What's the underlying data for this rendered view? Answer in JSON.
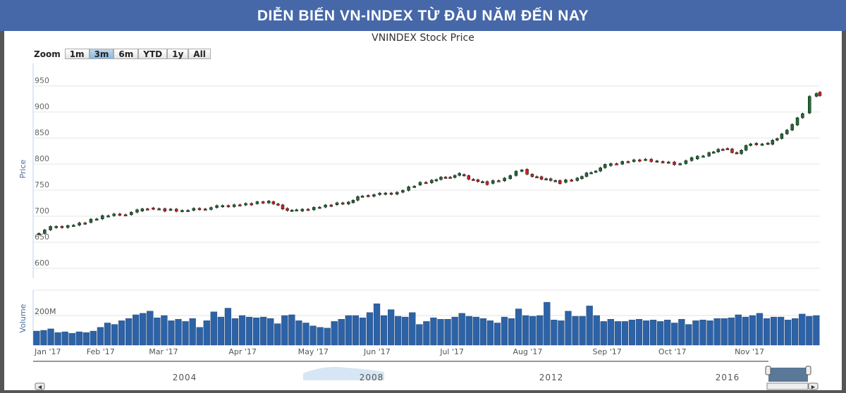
{
  "banner": {
    "title": "DIỄN BIẾN VN-INDEX TỪ ĐẦU NĂM ĐẾN NAY"
  },
  "chart_data": {
    "type": "candlestick",
    "title": "VNINDEX Stock Price",
    "ylabel": "Price",
    "ylim": [
      600,
      990
    ],
    "yticks": [
      "950",
      "900",
      "850",
      "800",
      "750",
      "700",
      "650",
      "600"
    ],
    "ytick_values": [
      950,
      900,
      850,
      800,
      750,
      700,
      650,
      600
    ],
    "x_unit": "trading day since Jan 2017",
    "months": [
      {
        "label": "Jan '17",
        "day": 0
      },
      {
        "label": "Feb '17",
        "day": 15
      },
      {
        "label": "Mar '17",
        "day": 33
      },
      {
        "label": "Apr '17",
        "day": 56
      },
      {
        "label": "May '17",
        "day": 76
      },
      {
        "label": "Jun '17",
        "day": 95
      },
      {
        "label": "Jul '17",
        "day": 117
      },
      {
        "label": "Aug '17",
        "day": 138
      },
      {
        "label": "Sep '17",
        "day": 161
      },
      {
        "label": "Oct '17",
        "day": 180
      },
      {
        "label": "Nov '17",
        "day": 202
      }
    ],
    "price": [
      [
        0,
        665
      ],
      [
        5,
        678
      ],
      [
        10,
        682
      ],
      [
        15,
        688
      ],
      [
        20,
        700
      ],
      [
        25,
        703
      ],
      [
        30,
        710
      ],
      [
        33,
        716
      ],
      [
        38,
        712
      ],
      [
        43,
        710
      ],
      [
        48,
        714
      ],
      [
        53,
        718
      ],
      [
        58,
        722
      ],
      [
        63,
        724
      ],
      [
        68,
        728
      ],
      [
        72,
        715
      ],
      [
        76,
        710
      ],
      [
        81,
        717
      ],
      [
        86,
        722
      ],
      [
        91,
        726
      ],
      [
        95,
        740
      ],
      [
        100,
        742
      ],
      [
        105,
        746
      ],
      [
        110,
        760
      ],
      [
        115,
        768
      ],
      [
        119,
        775
      ],
      [
        123,
        780
      ],
      [
        127,
        770
      ],
      [
        131,
        763
      ],
      [
        136,
        772
      ],
      [
        141,
        790
      ],
      [
        144,
        776
      ],
      [
        148,
        772
      ],
      [
        152,
        765
      ],
      [
        157,
        772
      ],
      [
        161,
        785
      ],
      [
        165,
        797
      ],
      [
        170,
        805
      ],
      [
        175,
        808
      ],
      [
        180,
        805
      ],
      [
        185,
        800
      ],
      [
        190,
        810
      ],
      [
        195,
        822
      ],
      [
        199,
        830
      ],
      [
        203,
        820
      ],
      [
        207,
        840
      ],
      [
        212,
        838
      ],
      [
        216,
        858
      ],
      [
        219,
        875
      ],
      [
        222,
        898
      ],
      [
        224,
        930
      ],
      [
        226,
        938
      ],
      [
        227,
        930
      ]
    ],
    "volume_label": "Volume",
    "volume_tick": "200M",
    "volume_tick_value": 200,
    "volume_unit": "M",
    "volume_ylim": [
      0,
      360
    ],
    "volume": [
      95,
      100,
      110,
      85,
      90,
      80,
      90,
      85,
      95,
      120,
      150,
      140,
      165,
      180,
      205,
      215,
      230,
      185,
      200,
      165,
      175,
      160,
      180,
      120,
      165,
      225,
      190,
      250,
      180,
      200,
      190,
      185,
      190,
      180,
      145,
      200,
      205,
      165,
      150,
      130,
      120,
      115,
      160,
      175,
      200,
      200,
      185,
      220,
      280,
      200,
      240,
      195,
      190,
      220,
      140,
      160,
      185,
      175,
      175,
      190,
      215,
      195,
      190,
      180,
      165,
      150,
      190,
      180,
      245,
      200,
      195,
      200,
      290,
      170,
      165,
      230,
      195,
      195,
      265,
      200,
      160,
      175,
      160,
      160,
      170,
      175,
      165,
      170,
      160,
      170,
      150,
      175,
      140,
      165,
      170,
      165,
      180,
      180,
      185,
      205,
      190,
      200,
      215,
      180,
      190,
      190,
      170,
      180,
      210,
      195,
      200
    ],
    "navigator": {
      "years": [
        "2004",
        "2008",
        "2012",
        "2016"
      ]
    }
  },
  "zoom": {
    "label": "Zoom",
    "buttons": [
      "1m",
      "3m",
      "6m",
      "YTD",
      "1y",
      "All"
    ],
    "selected": "3m"
  },
  "colors": {
    "banner": "#4668a8",
    "up": "#1f6b35",
    "down": "#d42020",
    "volume": "#2d62a6"
  }
}
